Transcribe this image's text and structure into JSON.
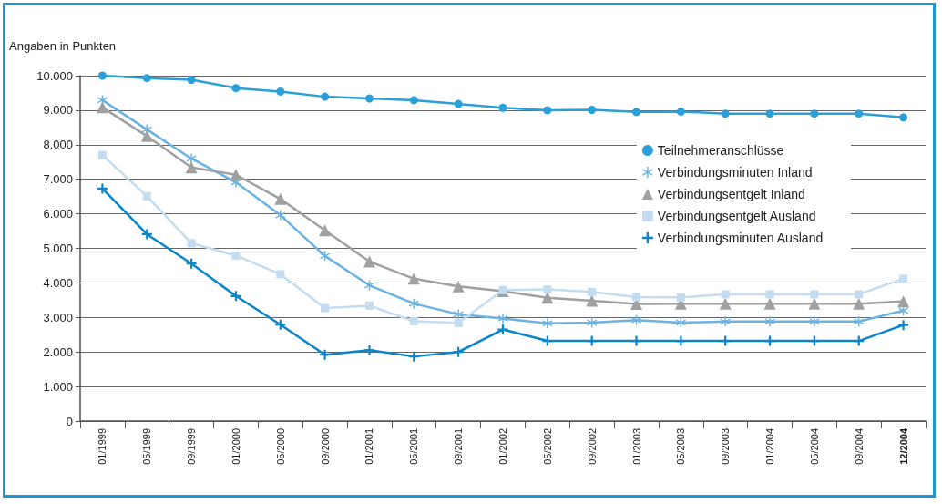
{
  "chart_data": {
    "type": "line",
    "ylabel": "Angaben in Punkten",
    "categories": [
      "01/1999",
      "05/1999",
      "09/1999",
      "01/2000",
      "05/2000",
      "09/2000",
      "01/2001",
      "05/2001",
      "09/2001",
      "01/2002",
      "05/2002",
      "09/2002",
      "01/2003",
      "05/2003",
      "09/2003",
      "01/2004",
      "05/2004",
      "09/2004",
      "12/2004"
    ],
    "series": [
      {
        "name": "Teilnehmeranschlüsse",
        "color": "#2a9fd8",
        "marker": "circle",
        "values": [
          10000,
          9930,
          9880,
          9640,
          9540,
          9390,
          9340,
          9290,
          9180,
          9070,
          9000,
          9010,
          8950,
          8960,
          8900,
          8900,
          8900,
          8900,
          8790
        ]
      },
      {
        "name": "Verbindungsminuten Inland",
        "color": "#6ab3e3",
        "marker": "star",
        "values": [
          9290,
          8440,
          7600,
          6910,
          5960,
          4780,
          3930,
          3400,
          3090,
          2970,
          2830,
          2850,
          2920,
          2850,
          2880,
          2880,
          2880,
          2880,
          3200
        ]
      },
      {
        "name": "Verbindungsentgelt Inland",
        "color": "#a0a0a0",
        "marker": "triangle",
        "values": [
          9080,
          8250,
          7340,
          7130,
          6430,
          5520,
          4620,
          4120,
          3900,
          3760,
          3570,
          3480,
          3390,
          3400,
          3400,
          3400,
          3400,
          3400,
          3460
        ]
      },
      {
        "name": "Verbindungsentgelt Ausland",
        "color": "#c4dcf0",
        "marker": "square",
        "values": [
          7700,
          6510,
          5150,
          4790,
          4250,
          3270,
          3340,
          2890,
          2840,
          3790,
          3810,
          3740,
          3590,
          3580,
          3670,
          3670,
          3670,
          3670,
          4120
        ]
      },
      {
        "name": "Verbindungsminuten Ausland",
        "color": "#0a85cc",
        "marker": "cross",
        "values": [
          6730,
          5410,
          4560,
          3620,
          2790,
          1920,
          2050,
          1870,
          2000,
          2650,
          2320,
          2320,
          2320,
          2320,
          2320,
          2320,
          2320,
          2320,
          2780
        ]
      }
    ],
    "ylim": [
      0,
      10000
    ],
    "yticks": [
      {
        "value": 0,
        "label": "0"
      },
      {
        "value": 1000,
        "label": "1.000"
      },
      {
        "value": 2000,
        "label": "2.000"
      },
      {
        "value": 3000,
        "label": "3.000"
      },
      {
        "value": 4000,
        "label": "4.000"
      },
      {
        "value": 5000,
        "label": "5.000"
      },
      {
        "value": 6000,
        "label": "6.000"
      },
      {
        "value": 7000,
        "label": "7.000"
      },
      {
        "value": 8000,
        "label": "8.000"
      },
      {
        "value": 9000,
        "label": "9.000"
      },
      {
        "value": 10000,
        "label": "10.000"
      }
    ],
    "grid": "y",
    "legend": "right",
    "line_style": "solid"
  }
}
